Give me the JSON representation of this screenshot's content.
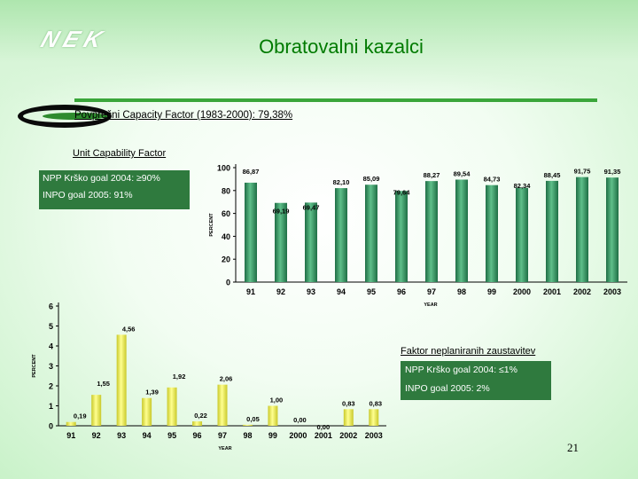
{
  "header": {
    "logo_text": "NEK",
    "title": "Obratovalni kazalci",
    "subtitle": "Povprečni Capacity Factor (1983-2000): 79,38%"
  },
  "chart_data": [
    {
      "type": "bar",
      "title": "Unit Capability Factor",
      "ylabel": "PERCENT",
      "xlabel": "YEAR",
      "categories": [
        "91",
        "92",
        "93",
        "94",
        "95",
        "96",
        "97",
        "98",
        "99",
        "2000",
        "2001",
        "2002",
        "2003"
      ],
      "values": [
        86.87,
        69.19,
        69.47,
        82.1,
        85.09,
        79.64,
        88.27,
        89.54,
        84.73,
        82.34,
        88.45,
        91.75,
        91.35
      ],
      "value_labels": [
        "86,87",
        "69,19",
        "69,47",
        "82,10",
        "85,09",
        "79,64",
        "88,27",
        "89,54",
        "84,73",
        "82,34",
        "88,45",
        "91,75",
        "91,35"
      ],
      "ylim": [
        0,
        100
      ],
      "yticks": [
        0,
        20,
        40,
        60,
        80,
        100
      ],
      "bar_color": "#2e8b57",
      "grid": false
    },
    {
      "type": "bar",
      "title": "Faktor neplaniranih zaustavitev",
      "ylabel": "PERCENT",
      "xlabel": "YEAR",
      "categories": [
        "91",
        "92",
        "93",
        "94",
        "95",
        "96",
        "97",
        "98",
        "99",
        "2000",
        "2001",
        "2002",
        "2003"
      ],
      "values": [
        0.19,
        1.55,
        4.56,
        1.39,
        1.92,
        0.22,
        2.06,
        0.05,
        1.0,
        0.0,
        0.0,
        0.83,
        0.83
      ],
      "value_labels": [
        "0,19",
        "1,55",
        "4,56",
        "1,39",
        "1,92",
        "0,22",
        "2,06",
        "0,05",
        "1,00",
        "0,00",
        "0,00",
        "0,83",
        "0,83"
      ],
      "ylim": [
        0,
        6
      ],
      "yticks": [
        0,
        1,
        2,
        3,
        4,
        5,
        6
      ],
      "bar_color": "#e8e84a",
      "grid": false
    }
  ],
  "goals_ucf": {
    "krsko": "NPP Krško goal 2004: ≥90%",
    "inpo": "INPO goal 2005:  91%"
  },
  "goals_fnz": {
    "krsko": "NPP Krško goal 2004: ≤1%",
    "inpo": "INPO goal 2005: 2%"
  },
  "page_number": "21",
  "colors": {
    "title": "#007a00",
    "goal_box": "#2f7a3e",
    "green_bar": "#2e8b57",
    "yellow_bar": "#e8e84a"
  }
}
